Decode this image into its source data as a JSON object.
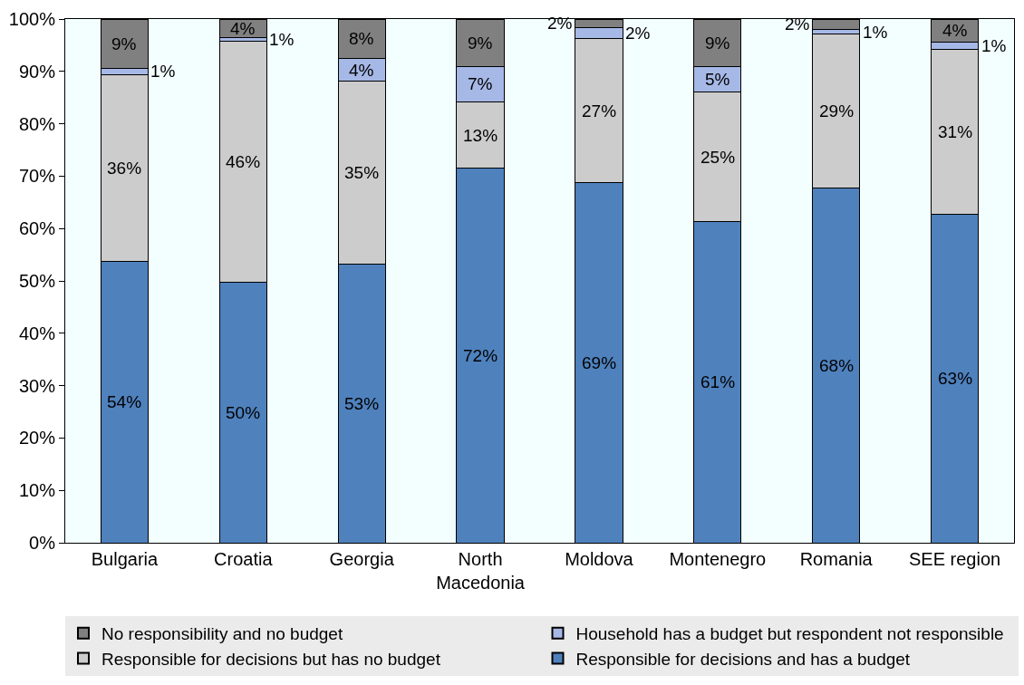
{
  "chart_data": {
    "type": "bar",
    "stacked": true,
    "categories": [
      "Bulgaria",
      "Croatia",
      "Georgia",
      "North\nMacedonia",
      "Moldova",
      "Montenegro",
      "Romania",
      "SEE region"
    ],
    "series": [
      {
        "name": "Responsible for decisions and has a budget",
        "color": "#4f81bd",
        "values": [
          53.8,
          49.7,
          53.2,
          71.5,
          68.8,
          61.4,
          67.7,
          62.8
        ],
        "value_labels": [
          "54%",
          "50%",
          "53%",
          "72%",
          "69%",
          "61%",
          "68%",
          "63%"
        ]
      },
      {
        "name": "Responsible for decisions but has no budget",
        "color": "#cccccc",
        "values": [
          35.6,
          46.0,
          34.9,
          12.6,
          27.4,
          24.6,
          29.4,
          31.4
        ],
        "value_labels": [
          "36%",
          "46%",
          "35%",
          "13%",
          "27%",
          "25%",
          "29%",
          "31%"
        ]
      },
      {
        "name": "Household has a budget but respondent not responsible",
        "color": "#a6b8e6",
        "values": [
          1.2,
          0.7,
          4.4,
          6.9,
          2.1,
          5.0,
          0.9,
          1.4
        ],
        "value_labels": [
          "1%",
          "1%",
          "4%",
          "7%",
          "2%",
          "5%",
          "1%",
          "1%"
        ]
      },
      {
        "name": "No responsibility and no budget",
        "color": "#808080",
        "values": [
          9.4,
          3.6,
          7.5,
          9.0,
          1.7,
          9.0,
          2.0,
          4.4
        ],
        "value_labels": [
          "9%",
          "4%",
          "8%",
          "9%",
          "2%",
          "9%",
          "2%",
          "4%"
        ]
      }
    ],
    "ylim": [
      0,
      100
    ],
    "yticks": [
      {
        "value": 0,
        "label": "0%"
      },
      {
        "value": 10,
        "label": "10%"
      },
      {
        "value": 20,
        "label": "20%"
      },
      {
        "value": 30,
        "label": "30%"
      },
      {
        "value": 40,
        "label": "40%"
      },
      {
        "value": 50,
        "label": "50%"
      },
      {
        "value": 60,
        "label": "60%"
      },
      {
        "value": 70,
        "label": "70%"
      },
      {
        "value": 80,
        "label": "80%"
      },
      {
        "value": 90,
        "label": "90%"
      },
      {
        "value": 100,
        "label": "100%"
      }
    ],
    "grid": false,
    "legend": "bottom"
  }
}
